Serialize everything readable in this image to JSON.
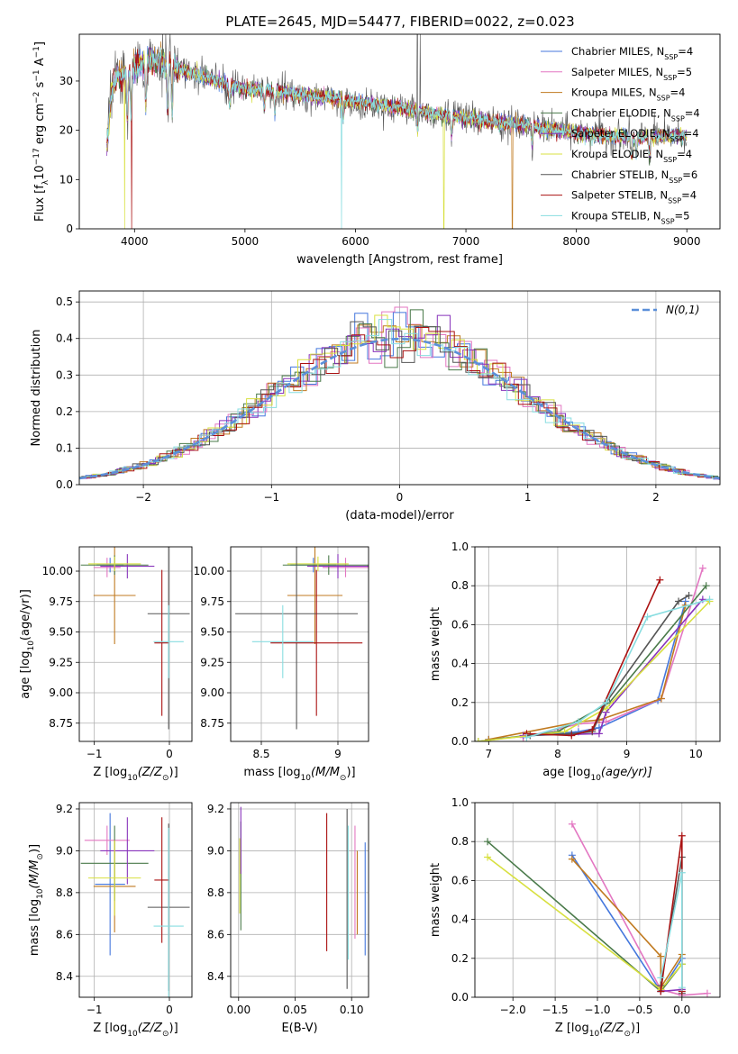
{
  "figure": {
    "title": "PLATE=2645, MJD=54477, FIBERID=0022, z=0.023"
  },
  "models": [
    {
      "name": "Chabrier MILES",
      "nssp": "4",
      "color": "#4477dd"
    },
    {
      "name": "Salpeter MILES",
      "nssp": "5",
      "color": "#e377c2"
    },
    {
      "name": "Kroupa MILES",
      "nssp": "4",
      "color": "#c07a20"
    },
    {
      "name": "Chabrier ELODIE",
      "nssp": "4",
      "color": "#4a7a4a"
    },
    {
      "name": "Salpeter ELODIE",
      "nssp": "4",
      "color": "#8833bb"
    },
    {
      "name": "Kroupa ELODIE",
      "nssp": "4",
      "color": "#d8e040"
    },
    {
      "name": "Chabrier STELIB",
      "nssp": "6",
      "color": "#555555"
    },
    {
      "name": "Salpeter STELIB",
      "nssp": "4",
      "color": "#aa1111"
    },
    {
      "name": "Kroupa STELIB",
      "nssp": "5",
      "color": "#88dde0"
    }
  ],
  "chart_data": [
    {
      "id": "spectrum",
      "type": "line",
      "title": "PLATE=2645, MJD=54477, FIBERID=0022, z=0.023",
      "xlabel": "wavelength [Angstrom, rest frame]",
      "ylabel": "Flux [f",
      "ylabel_sub": "λ",
      "ylabel_mid": "10",
      "ylabel_exp": "−17",
      "ylabel_mid2": " erg cm",
      "ylabel_exp2": "−2",
      "ylabel_mid3": " s",
      "ylabel_exp3": "−1",
      "ylabel_mid4": " A",
      "ylabel_exp4": "−1",
      "ylabel_end": "]",
      "xlim": [
        3500,
        9300
      ],
      "ylim": [
        0,
        39.5
      ],
      "xticks": [
        4000,
        5000,
        6000,
        7000,
        8000,
        9000
      ],
      "yticks": [
        0,
        10,
        20,
        30
      ],
      "continuum": [
        [
          3750,
          17
        ],
        [
          3790,
          28
        ],
        [
          3850,
          31
        ],
        [
          3950,
          32
        ],
        [
          4000,
          33
        ],
        [
          4100,
          34
        ],
        [
          4250,
          34
        ],
        [
          4400,
          32.5
        ],
        [
          4600,
          31
        ],
        [
          4800,
          29.5
        ],
        [
          5000,
          28.5
        ],
        [
          5300,
          28
        ],
        [
          5500,
          27.2
        ],
        [
          5800,
          26.5
        ],
        [
          6000,
          25.8
        ],
        [
          6300,
          25
        ],
        [
          6563,
          24
        ],
        [
          6800,
          23.2
        ],
        [
          7000,
          22.5
        ],
        [
          7300,
          21.5
        ],
        [
          7600,
          20.8
        ],
        [
          7900,
          19.8
        ],
        [
          8200,
          19
        ],
        [
          8500,
          18.5
        ],
        [
          8800,
          18.8
        ],
        [
          9000,
          19
        ]
      ],
      "absorption_lines": [
        3934,
        3969,
        4102,
        4300,
        4340,
        4861,
        5175,
        5270,
        5890,
        6563,
        6870,
        7600,
        8500,
        8542,
        8662
      ],
      "dropouts": [
        [
          3910,
          0
        ],
        [
          3975,
          0
        ],
        [
          5875,
          0
        ],
        [
          6800,
          0
        ],
        [
          7420,
          0
        ]
      ],
      "spikes": [
        [
          6560,
          39.5
        ],
        [
          6585,
          39.5
        ]
      ]
    },
    {
      "id": "residuals",
      "type": "histogram",
      "xlabel": "(data-model)/error",
      "ylabel": "Normed distribution",
      "xlim": [
        -2.5,
        2.5
      ],
      "ylim": [
        0,
        0.53
      ],
      "xticks": [
        -2,
        -1,
        0,
        1,
        2
      ],
      "yticks": [
        0.0,
        0.1,
        0.2,
        0.3,
        0.4,
        0.5
      ],
      "bin_width": 0.1,
      "reference_label": "N(0,1)",
      "reference_color": "#5b8fd9"
    },
    {
      "id": "age-vs-Z",
      "type": "errorbar",
      "xlabel": "Z [log",
      "xlabel_sub": "10",
      "xlabel_end": "(Z/Z",
      "xlabel_sun": "⊙",
      "xlabel_close": ")]",
      "ylabel": "age  [log",
      "ylabel_sub": "10",
      "ylabel_end": "(age/yr)]",
      "xlim": [
        -1.2,
        0.3
      ],
      "ylim": [
        8.6,
        10.2
      ],
      "xticks": [
        -1,
        0
      ],
      "yticks": [
        8.75,
        9.0,
        9.25,
        9.5,
        9.75,
        10.0
      ],
      "points": [
        {
          "m": 0,
          "x": -0.79,
          "y": 10.05,
          "ex": 0.18,
          "ey": 0.06
        },
        {
          "m": 1,
          "x": -0.83,
          "y": 10.03,
          "ex": 0.18,
          "ey": 0.08
        },
        {
          "m": 2,
          "x": -0.73,
          "y": 9.8,
          "ex": 0.28,
          "ey": 0.4
        },
        {
          "m": 3,
          "x": -0.73,
          "y": 10.05,
          "ex": 0.45,
          "ey": 0.08
        },
        {
          "m": 4,
          "x": -0.56,
          "y": 10.04,
          "ex": 0.36,
          "ey": 0.1
        },
        {
          "m": 5,
          "x": -0.73,
          "y": 10.06,
          "ex": 0.35,
          "ey": 0.06
        },
        {
          "m": 6,
          "x": -0.01,
          "y": 9.65,
          "ex": 0.28,
          "ey": 0.95
        },
        {
          "m": 7,
          "x": -0.1,
          "y": 9.41,
          "ex": 0.1,
          "ey": 0.6
        },
        {
          "m": 8,
          "x": -0.01,
          "y": 9.42,
          "ex": 0.2,
          "ey": 0.3
        }
      ]
    },
    {
      "id": "age-vs-mass",
      "type": "errorbar",
      "xlabel": "mass [log",
      "xlabel_sub": "10",
      "xlabel_end": "(M/M",
      "xlabel_sun": "⊙",
      "xlabel_close": ")]",
      "ylabel": "",
      "xlim": [
        8.3,
        9.2
      ],
      "ylim": [
        8.6,
        10.2
      ],
      "xticks": [
        8.5,
        9.0
      ],
      "yticks": [
        8.75,
        9.0,
        9.25,
        9.5,
        9.75,
        10.0
      ],
      "points": [
        {
          "m": 0,
          "x": 8.84,
          "y": 10.05,
          "ex": 0.15,
          "ey": 0.06
        },
        {
          "m": 1,
          "x": 9.05,
          "y": 10.03,
          "ex": 0.15,
          "ey": 0.08
        },
        {
          "m": 2,
          "x": 8.85,
          "y": 9.8,
          "ex": 0.18,
          "ey": 0.4
        },
        {
          "m": 3,
          "x": 8.94,
          "y": 10.05,
          "ex": 0.3,
          "ey": 0.08
        },
        {
          "m": 4,
          "x": 9.0,
          "y": 10.04,
          "ex": 0.2,
          "ey": 0.1
        },
        {
          "m": 5,
          "x": 8.87,
          "y": 10.06,
          "ex": 0.2,
          "ey": 0.06
        },
        {
          "m": 6,
          "x": 8.73,
          "y": 9.65,
          "ex": 0.4,
          "ey": 0.95
        },
        {
          "m": 7,
          "x": 8.86,
          "y": 9.41,
          "ex": 0.3,
          "ey": 0.6
        },
        {
          "m": 8,
          "x": 8.64,
          "y": 9.42,
          "ex": 0.2,
          "ey": 0.3
        }
      ]
    },
    {
      "id": "massweight-vs-age",
      "type": "line",
      "xlabel": "age  [log",
      "xlabel_sub": "10",
      "xlabel_end": "(age/yr)]",
      "ylabel": "mass weight",
      "xlim": [
        6.8,
        10.35
      ],
      "ylim": [
        0,
        1.0
      ],
      "xticks": [
        7,
        8,
        9,
        10
      ],
      "yticks": [
        0.0,
        0.2,
        0.4,
        0.6,
        0.8,
        1.0
      ],
      "series": [
        {
          "m": 0,
          "points": [
            [
              7.0,
              0.01
            ],
            [
              8.3,
              0.05
            ],
            [
              8.6,
              0.07
            ],
            [
              9.45,
              0.21
            ],
            [
              9.85,
              0.72
            ]
          ]
        },
        {
          "m": 1,
          "points": [
            [
              7.5,
              0.02
            ],
            [
              8.3,
              0.09
            ],
            [
              8.7,
              0.1
            ],
            [
              9.5,
              0.22
            ],
            [
              10.1,
              0.89
            ]
          ]
        },
        {
          "m": 2,
          "points": [
            [
              7.0,
              0.01
            ],
            [
              8.3,
              0.1
            ],
            [
              8.6,
              0.11
            ],
            [
              9.5,
              0.22
            ],
            [
              9.85,
              0.7
            ]
          ]
        },
        {
          "m": 3,
          "points": [
            [
              6.85,
              0.0
            ],
            [
              8.0,
              0.05
            ],
            [
              8.75,
              0.2
            ],
            [
              10.15,
              0.8
            ]
          ]
        },
        {
          "m": 4,
          "points": [
            [
              7.5,
              0.03
            ],
            [
              8.6,
              0.04
            ],
            [
              8.7,
              0.15
            ],
            [
              10.1,
              0.73
            ]
          ]
        },
        {
          "m": 5,
          "points": [
            [
              6.85,
              0.0
            ],
            [
              8.1,
              0.05
            ],
            [
              8.7,
              0.17
            ],
            [
              10.2,
              0.72
            ]
          ]
        },
        {
          "m": 6,
          "points": [
            [
              7.6,
              0.03
            ],
            [
              8.2,
              0.04
            ],
            [
              8.5,
              0.05
            ],
            [
              8.7,
              0.2
            ],
            [
              9.75,
              0.72
            ],
            [
              9.9,
              0.75
            ]
          ]
        },
        {
          "m": 7,
          "points": [
            [
              7.55,
              0.04
            ],
            [
              8.2,
              0.03
            ],
            [
              8.5,
              0.06
            ],
            [
              9.48,
              0.83
            ]
          ]
        },
        {
          "m": 8,
          "points": [
            [
              7.55,
              0.02
            ],
            [
              8.3,
              0.1
            ],
            [
              8.7,
              0.2
            ],
            [
              9.3,
              0.64
            ],
            [
              10.2,
              0.73
            ]
          ]
        }
      ]
    },
    {
      "id": "mass-vs-Z",
      "type": "errorbar",
      "xlabel": "Z [log",
      "xlabel_sub": "10",
      "xlabel_end": "(Z/Z",
      "xlabel_sun": "⊙",
      "xlabel_close": ")]",
      "ylabel": "mass [log",
      "ylabel_sub": "10",
      "ylabel_end": "(M/M",
      "ylabel_sun": "⊙",
      "ylabel_close": ")]",
      "xlim": [
        -1.2,
        0.3
      ],
      "ylim": [
        8.3,
        9.23
      ],
      "xticks": [
        -1,
        0
      ],
      "yticks": [
        8.4,
        8.6,
        8.8,
        9.0,
        9.2
      ],
      "points": [
        {
          "m": 0,
          "x": -0.79,
          "y": 8.84,
          "ex": 0.2,
          "ey": 0.34
        },
        {
          "m": 1,
          "x": -0.83,
          "y": 9.05,
          "ex": 0.3,
          "ey": 0.07
        },
        {
          "m": 2,
          "x": -0.73,
          "y": 8.83,
          "ex": 0.28,
          "ey": 0.22
        },
        {
          "m": 3,
          "x": -0.73,
          "y": 8.94,
          "ex": 0.45,
          "ey": 0.18
        },
        {
          "m": 4,
          "x": -0.56,
          "y": 9.0,
          "ex": 0.36,
          "ey": 0.16
        },
        {
          "m": 5,
          "x": -0.73,
          "y": 8.87,
          "ex": 0.35,
          "ey": 0.18
        },
        {
          "m": 6,
          "x": -0.01,
          "y": 8.73,
          "ex": 0.28,
          "ey": 0.4
        },
        {
          "m": 7,
          "x": -0.1,
          "y": 8.86,
          "ex": 0.1,
          "ey": 0.3
        },
        {
          "m": 8,
          "x": -0.01,
          "y": 8.64,
          "ex": 0.2,
          "ey": 0.47
        }
      ]
    },
    {
      "id": "mass-vs-EBV",
      "type": "errorbar",
      "xlabel": "E(B-V)",
      "ylabel": "",
      "xlim": [
        -0.007,
        0.115
      ],
      "ylim": [
        8.3,
        9.23
      ],
      "xticks": [
        0.0,
        0.05,
        0.1
      ],
      "xtick_labels": [
        "0.00",
        "0.05",
        "0.10"
      ],
      "yticks": [
        8.4,
        8.6,
        8.8,
        9.0,
        9.2
      ],
      "points": [
        {
          "m": 0,
          "x": 0.112,
          "y": 8.77,
          "ex": 0,
          "ey": 0.27
        },
        {
          "m": 1,
          "x": 0.103,
          "y": 8.85,
          "ex": 0,
          "ey": 0.27
        },
        {
          "m": 2,
          "x": 0.105,
          "y": 8.8,
          "ex": 0,
          "ey": 0.2
        },
        {
          "m": 3,
          "x": 0.002,
          "y": 8.88,
          "ex": 0,
          "ey": 0.26
        },
        {
          "m": 4,
          "x": 0.002,
          "y": 9.05,
          "ex": 0,
          "ey": 0.16
        },
        {
          "m": 5,
          "x": 0.001,
          "y": 8.88,
          "ex": 0,
          "ey": 0.18
        },
        {
          "m": 6,
          "x": 0.096,
          "y": 8.77,
          "ex": 0,
          "ey": 0.43
        },
        {
          "m": 7,
          "x": 0.078,
          "y": 8.85,
          "ex": 0,
          "ey": 0.33
        },
        {
          "m": 8,
          "x": 0.097,
          "y": 8.8,
          "ex": 0,
          "ey": 0.32
        }
      ]
    },
    {
      "id": "massweight-vs-Z",
      "type": "line",
      "xlabel": "Z [log",
      "xlabel_sub": "10",
      "xlabel_end": "(Z/Z",
      "xlabel_sun": "⊙",
      "xlabel_close": ")]",
      "ylabel": "mass weight",
      "xlim": [
        -2.45,
        0.45
      ],
      "ylim": [
        0,
        1.0
      ],
      "xticks": [
        -2.0,
        -1.5,
        -1.0,
        -0.5,
        0.0
      ],
      "xtick_labels": [
        "−2.0",
        "−1.5",
        "−1.0",
        "−0.5",
        "0.0"
      ],
      "yticks": [
        0.0,
        0.2,
        0.4,
        0.6,
        0.8,
        1.0
      ],
      "series": [
        {
          "m": 0,
          "points": [
            [
              -1.3,
              0.73
            ],
            [
              -0.25,
              0.03
            ],
            [
              0.0,
              0.2
            ]
          ]
        },
        {
          "m": 1,
          "points": [
            [
              -1.3,
              0.89
            ],
            [
              -0.25,
              0.04
            ],
            [
              0.0,
              0.01
            ],
            [
              0.3,
              0.02
            ]
          ]
        },
        {
          "m": 2,
          "points": [
            [
              -1.3,
              0.71
            ],
            [
              -0.25,
              0.21
            ],
            [
              -0.25,
              0.05
            ],
            [
              0.0,
              0.22
            ]
          ]
        },
        {
          "m": 3,
          "points": [
            [
              -2.3,
              0.8
            ],
            [
              -0.25,
              0.03
            ],
            [
              0.0,
              0.17
            ]
          ]
        },
        {
          "m": 4,
          "points": [
            [
              -0.25,
              0.03
            ],
            [
              0.0,
              0.04
            ]
          ]
        },
        {
          "m": 5,
          "points": [
            [
              -2.3,
              0.72
            ],
            [
              -0.25,
              0.04
            ],
            [
              0.0,
              0.17
            ]
          ]
        },
        {
          "m": 6,
          "points": [
            [
              -0.25,
              0.06
            ],
            [
              0.0,
              0.72
            ],
            [
              0.0,
              0.02
            ]
          ]
        },
        {
          "m": 7,
          "points": [
            [
              -0.25,
              0.03
            ],
            [
              0.0,
              0.83
            ],
            [
              0.0,
              0.03
            ]
          ]
        },
        {
          "m": 8,
          "points": [
            [
              -0.25,
              0.1
            ],
            [
              0.0,
              0.64
            ],
            [
              0.0,
              0.05
            ]
          ]
        }
      ]
    }
  ]
}
